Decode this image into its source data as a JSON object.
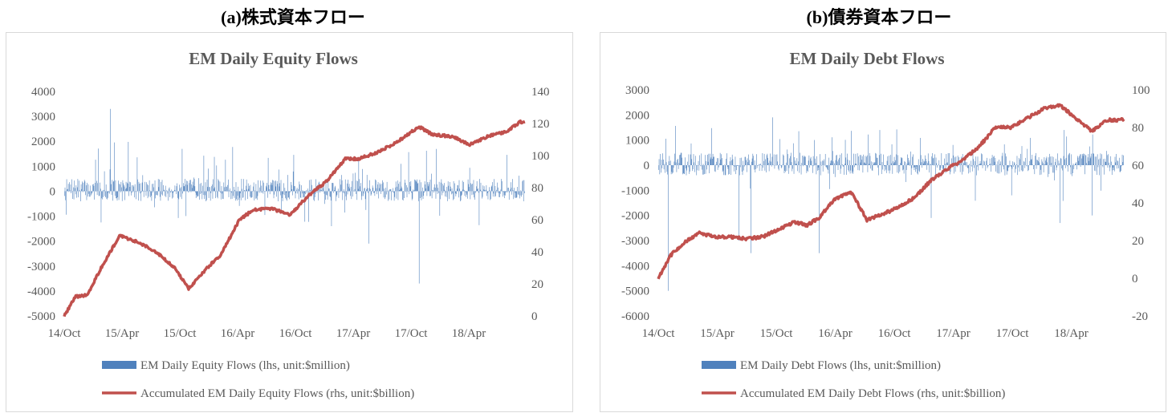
{
  "captions": [
    "(a)株式資本フロー",
    "(b)債券資本フロー"
  ],
  "chart_data": [
    {
      "type": "bar+line",
      "title": "EM Daily Equity Flows",
      "x_ticks": [
        "14/Oct",
        "15/Apr",
        "15/Oct",
        "16/Apr",
        "16/Oct",
        "17/Apr",
        "17/Oct",
        "18/Apr"
      ],
      "left_axis": {
        "ticks": [
          4000,
          3000,
          2000,
          1000,
          0,
          -1000,
          -2000,
          -3000,
          -4000,
          -5000
        ],
        "ylim": [
          -5000,
          4000
        ]
      },
      "right_axis": {
        "ticks": [
          140,
          120,
          100,
          80,
          60,
          40,
          20,
          0
        ],
        "ylim": [
          0,
          140
        ]
      },
      "series": [
        {
          "name": "EM Daily Equity Flows (lhs, unit:$million)",
          "kind": "bar",
          "axis": "left",
          "color": "#4f81bd"
        },
        {
          "name": "Accumulated EM Daily Equity Flows (rhs, unit:$billion)",
          "kind": "line",
          "axis": "right",
          "color": "#c0504d"
        }
      ],
      "accumulated_approx": [
        [
          0,
          0
        ],
        [
          12,
          12
        ],
        [
          25,
          13
        ],
        [
          40,
          30
        ],
        [
          60,
          50
        ],
        [
          80,
          46
        ],
        [
          100,
          40
        ],
        [
          120,
          30
        ],
        [
          135,
          17
        ],
        [
          155,
          30
        ],
        [
          170,
          38
        ],
        [
          190,
          60
        ],
        [
          205,
          66
        ],
        [
          225,
          67
        ],
        [
          245,
          63
        ],
        [
          265,
          75
        ],
        [
          285,
          84
        ],
        [
          305,
          98
        ],
        [
          320,
          98
        ],
        [
          340,
          102
        ],
        [
          360,
          108
        ],
        [
          385,
          118
        ],
        [
          400,
          113
        ],
        [
          420,
          112
        ],
        [
          440,
          107
        ],
        [
          460,
          112
        ],
        [
          480,
          115
        ],
        [
          495,
          121
        ]
      ],
      "spikes_approx": [
        [
          50,
          3300
        ],
        [
          290,
          -1400
        ],
        [
          330,
          -2100
        ],
        [
          385,
          -3700
        ]
      ]
    },
    {
      "type": "bar+line",
      "title": "EM Daily Debt Flows",
      "x_ticks": [
        "14/Oct",
        "15/Apr",
        "15/Oct",
        "16/Apr",
        "16/Oct",
        "17/Apr",
        "17/Oct",
        "18/Apr"
      ],
      "left_axis": {
        "ticks": [
          3000,
          2000,
          1000,
          0,
          -1000,
          -2000,
          -3000,
          -4000,
          -5000,
          -6000
        ],
        "ylim": [
          -6000,
          3000
        ]
      },
      "right_axis": {
        "ticks": [
          100,
          80,
          60,
          40,
          20,
          0,
          -20
        ],
        "ylim": [
          -20,
          100
        ]
      },
      "series": [
        {
          "name": "EM Daily Debt Flows (lhs, unit:$million)",
          "kind": "bar",
          "axis": "left",
          "color": "#4f81bd"
        },
        {
          "name": "Accumulated EM Daily Debt Flows (rhs, unit:$billion)",
          "kind": "line",
          "axis": "right",
          "color": "#c0504d"
        }
      ],
      "accumulated_approx": [
        [
          0,
          0
        ],
        [
          15,
          12
        ],
        [
          30,
          18
        ],
        [
          50,
          24
        ],
        [
          70,
          22
        ],
        [
          90,
          22
        ],
        [
          110,
          21
        ],
        [
          130,
          22
        ],
        [
          150,
          26
        ],
        [
          170,
          30
        ],
        [
          185,
          28
        ],
        [
          200,
          32
        ],
        [
          220,
          42
        ],
        [
          240,
          46
        ],
        [
          260,
          31
        ],
        [
          280,
          34
        ],
        [
          300,
          38
        ],
        [
          320,
          43
        ],
        [
          340,
          52
        ],
        [
          360,
          58
        ],
        [
          380,
          63
        ],
        [
          400,
          70
        ],
        [
          420,
          80
        ],
        [
          440,
          80
        ],
        [
          460,
          85
        ],
        [
          480,
          90
        ],
        [
          500,
          92
        ],
        [
          520,
          85
        ],
        [
          540,
          78
        ],
        [
          560,
          84
        ],
        [
          578,
          84
        ]
      ],
      "spikes_approx": [
        [
          12,
          -5000
        ],
        [
          100,
          -3000
        ],
        [
          115,
          -3500
        ],
        [
          200,
          -3500
        ],
        [
          340,
          -2100
        ],
        [
          440,
          -1200
        ],
        [
          500,
          -2300
        ],
        [
          540,
          -2000
        ]
      ]
    }
  ]
}
